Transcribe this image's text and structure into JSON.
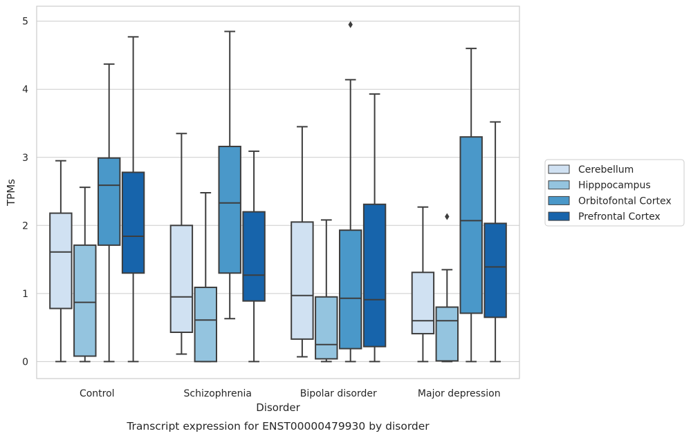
{
  "chart_data": {
    "type": "box",
    "caption": "Transcript expression for ENST00000479930 by disorder",
    "xlabel": "Disorder",
    "ylabel": "TPMs",
    "ylim": [
      -0.25,
      5.22
    ],
    "yticks": [
      0,
      1,
      2,
      3,
      4,
      5
    ],
    "grid": true,
    "legend_position": "right",
    "categories": [
      "Control",
      "Schizophrenia",
      "Bipolar disorder",
      "Major depression"
    ],
    "series": [
      {
        "name": "Cerebellum",
        "color": "#d0e1f2",
        "boxes": [
          {
            "whisker_low": 0.0,
            "q1": 0.78,
            "median": 1.61,
            "q3": 2.18,
            "whisker_high": 2.95,
            "outliers": []
          },
          {
            "whisker_low": 0.11,
            "q1": 0.43,
            "median": 0.95,
            "q3": 2.0,
            "whisker_high": 3.35,
            "outliers": []
          },
          {
            "whisker_low": 0.07,
            "q1": 0.33,
            "median": 0.97,
            "q3": 2.05,
            "whisker_high": 3.45,
            "outliers": []
          },
          {
            "whisker_low": 0.0,
            "q1": 0.41,
            "median": 0.6,
            "q3": 1.31,
            "whisker_high": 2.27,
            "outliers": []
          }
        ]
      },
      {
        "name": "Hipppocampus",
        "color": "#94c4df",
        "boxes": [
          {
            "whisker_low": 0.0,
            "q1": 0.08,
            "median": 0.87,
            "q3": 1.71,
            "whisker_high": 2.56,
            "outliers": []
          },
          {
            "whisker_low": 0.0,
            "q1": 0.0,
            "median": 0.61,
            "q3": 1.09,
            "whisker_high": 2.48,
            "outliers": []
          },
          {
            "whisker_low": 0.0,
            "q1": 0.04,
            "median": 0.25,
            "q3": 0.95,
            "whisker_high": 2.08,
            "outliers": []
          },
          {
            "whisker_low": 0.0,
            "q1": 0.01,
            "median": 0.6,
            "q3": 0.8,
            "whisker_high": 1.35,
            "outliers": [
              2.13
            ]
          }
        ]
      },
      {
        "name": "Orbitofontal Cortex",
        "color": "#4a98c9",
        "boxes": [
          {
            "whisker_low": 0.0,
            "q1": 1.71,
            "median": 2.59,
            "q3": 2.99,
            "whisker_high": 4.37,
            "outliers": []
          },
          {
            "whisker_low": 0.63,
            "q1": 1.3,
            "median": 2.33,
            "q3": 3.16,
            "whisker_high": 4.85,
            "outliers": []
          },
          {
            "whisker_low": 0.0,
            "q1": 0.19,
            "median": 0.93,
            "q3": 1.93,
            "whisker_high": 4.14,
            "outliers": [
              4.95
            ]
          },
          {
            "whisker_low": 0.0,
            "q1": 0.71,
            "median": 2.07,
            "q3": 3.3,
            "whisker_high": 4.6,
            "outliers": []
          }
        ]
      },
      {
        "name": "Prefrontal Cortex",
        "color": "#1764ab",
        "boxes": [
          {
            "whisker_low": 0.0,
            "q1": 1.3,
            "median": 1.84,
            "q3": 2.78,
            "whisker_high": 4.77,
            "outliers": []
          },
          {
            "whisker_low": 0.0,
            "q1": 0.89,
            "median": 1.27,
            "q3": 2.2,
            "whisker_high": 3.09,
            "outliers": []
          },
          {
            "whisker_low": 0.0,
            "q1": 0.22,
            "median": 0.91,
            "q3": 2.31,
            "whisker_high": 3.93,
            "outliers": []
          },
          {
            "whisker_low": 0.0,
            "q1": 0.65,
            "median": 1.39,
            "q3": 2.03,
            "whisker_high": 3.52,
            "outliers": []
          }
        ]
      }
    ]
  }
}
